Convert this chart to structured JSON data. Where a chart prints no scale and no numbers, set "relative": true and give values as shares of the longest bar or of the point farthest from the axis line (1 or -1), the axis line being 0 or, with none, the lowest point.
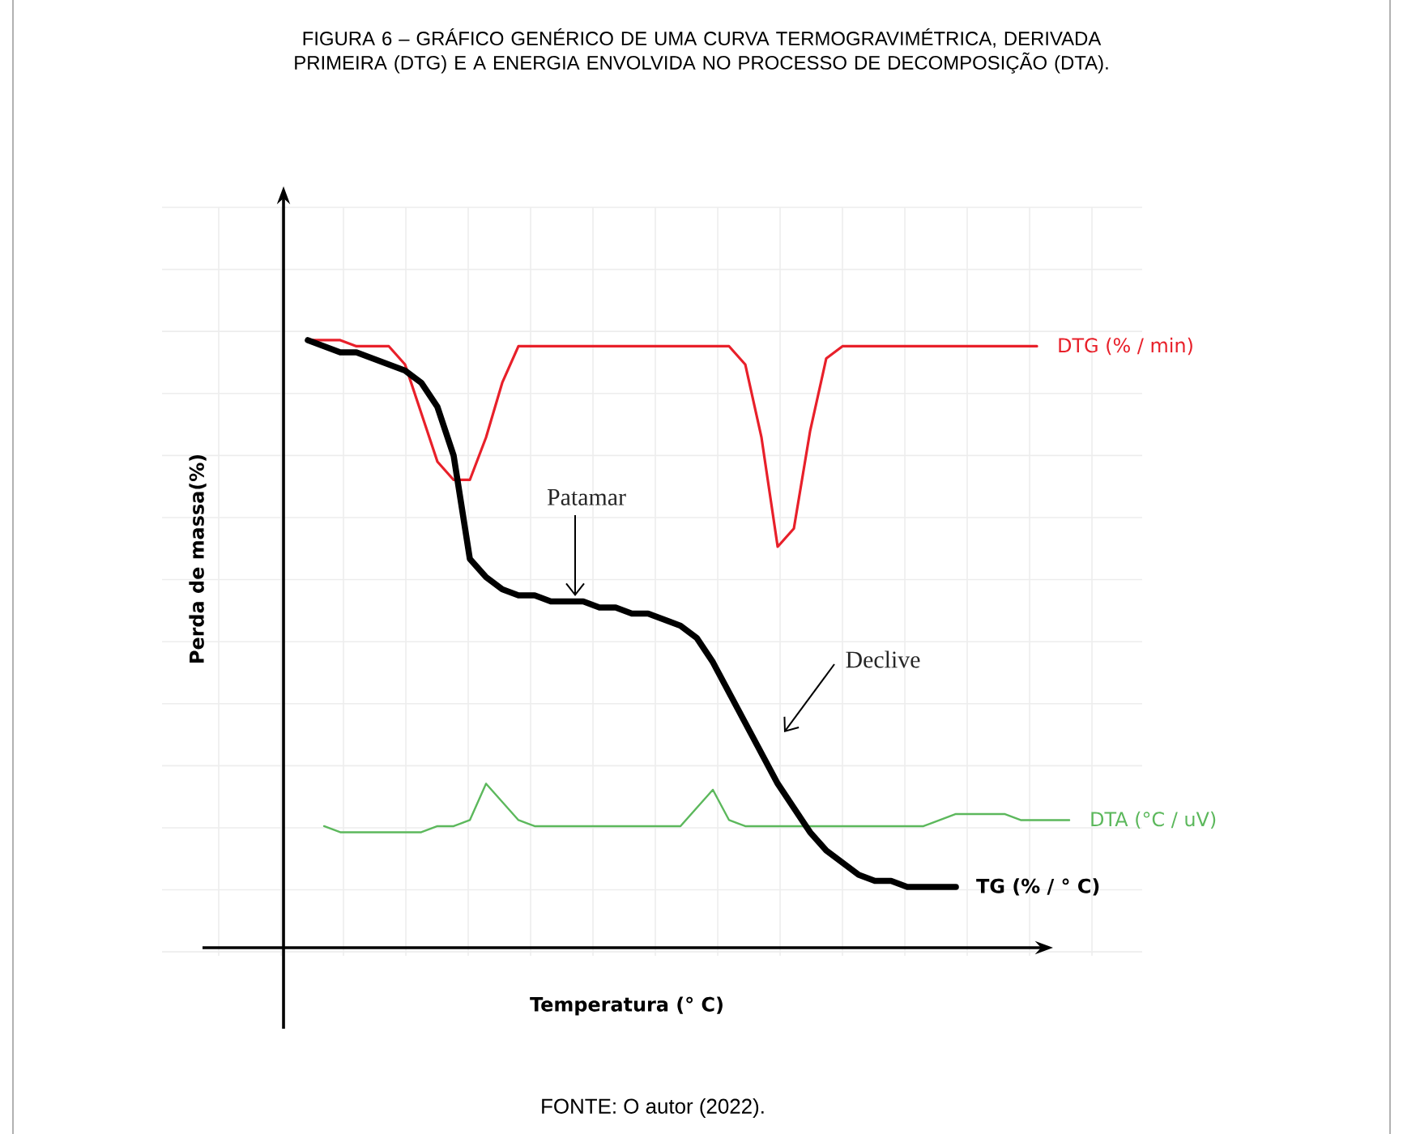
{
  "chart_data": {
    "type": "line",
    "relative": true,
    "grid": true,
    "title": "FIGURA 6 – GRÁFICO GENÉRICO DE UMA CURVA TERMOGRAVIMÉTRICA, DERIVADA PRIMEIRA (DTG) E A ENERGIA ENVOLVIDA NO PROCESSO DE DECOMPOSIÇÃO (DTA).",
    "xlabel": "Temperatura (° C)",
    "ylabel": "Perda de massa(%)",
    "categories": [
      null,
      null,
      null,
      null,
      null,
      null,
      null,
      null,
      null,
      null,
      null,
      null,
      null,
      null,
      null,
      null,
      null,
      null,
      null,
      null,
      null,
      null,
      null,
      null,
      null,
      null,
      null,
      null,
      null,
      null,
      null,
      null,
      null,
      null,
      null,
      null,
      null,
      null,
      null,
      null,
      null,
      null,
      null,
      null,
      null,
      null,
      null,
      null
    ],
    "series": [
      {
        "name": "DTG (% / min)",
        "color": "#e8202a",
        "values": [
          1.0,
          1.0,
          1.0,
          0.99,
          0.99,
          0.99,
          0.96,
          0.88,
          0.8,
          0.77,
          0.77,
          0.84,
          0.93,
          0.99,
          0.99,
          0.99,
          0.99,
          0.99,
          0.99,
          0.99,
          0.99,
          0.99,
          0.99,
          0.99,
          0.99,
          0.99,
          0.99,
          0.96,
          0.84,
          0.66,
          0.69,
          0.85,
          0.97,
          0.99,
          0.99,
          0.99,
          0.99,
          0.99,
          0.99,
          0.99,
          0.99,
          0.99,
          0.99,
          0.99,
          0.99,
          0.99,
          null,
          null
        ]
      },
      {
        "name": "DTA (°C / uV)",
        "color": "#5cb85c",
        "values": [
          null,
          0.2,
          0.19,
          0.19,
          0.19,
          0.19,
          0.19,
          0.19,
          0.2,
          0.2,
          0.21,
          0.27,
          0.24,
          0.21,
          0.2,
          0.2,
          0.2,
          0.2,
          0.2,
          0.2,
          0.2,
          0.2,
          0.2,
          0.2,
          0.23,
          0.26,
          0.21,
          0.2,
          0.2,
          0.2,
          0.2,
          0.2,
          0.2,
          0.2,
          0.2,
          0.2,
          0.2,
          0.2,
          0.2,
          0.21,
          0.22,
          0.22,
          0.22,
          0.22,
          0.21,
          0.21,
          0.21,
          0.21
        ]
      },
      {
        "name": "TG (% / ° C)",
        "color": "#000000",
        "values": [
          1.0,
          0.99,
          0.98,
          0.98,
          0.97,
          0.96,
          0.95,
          0.93,
          0.89,
          0.81,
          0.64,
          0.61,
          0.59,
          0.58,
          0.58,
          0.57,
          0.57,
          0.57,
          0.56,
          0.56,
          0.55,
          0.55,
          0.54,
          0.53,
          0.51,
          0.47,
          0.42,
          0.37,
          0.32,
          0.27,
          0.23,
          0.19,
          0.16,
          0.14,
          0.12,
          0.11,
          0.11,
          0.1,
          0.1,
          0.1,
          0.1,
          null,
          null,
          null,
          null,
          null,
          null,
          null
        ]
      }
    ],
    "annotations": [
      "Patamar",
      "Declive",
      "FONTE: O autor (2022)."
    ]
  }
}
